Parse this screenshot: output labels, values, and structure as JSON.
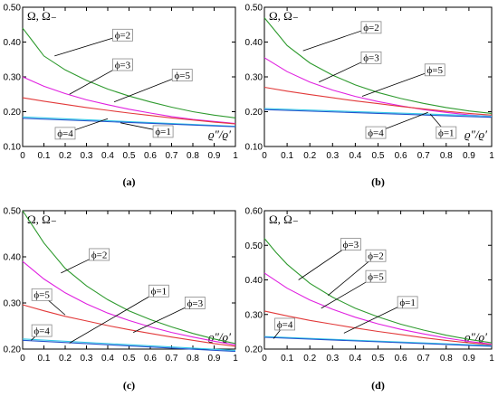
{
  "chart_data": [
    {
      "type": "line",
      "caption": "(a)",
      "ylabel": "Ω, Ω₋",
      "xlabel": "ϱ″/ϱ′",
      "xlim": [
        0,
        1
      ],
      "ylim": [
        0.1,
        0.5
      ],
      "xticks": [
        "0",
        "0.1",
        "0.2",
        "0.3",
        "0.4",
        "0.5",
        "0.6",
        "0.7",
        "0.8",
        "0.9",
        "1"
      ],
      "yticks": [
        "0.10",
        "0.20",
        "0.30",
        "0.40",
        "0.50"
      ],
      "series": [
        {
          "name": "ϕ=2",
          "color": "#2e9a2e",
          "x": [
            0,
            0.05,
            0.1,
            0.2,
            0.3,
            0.4,
            0.5,
            0.6,
            0.7,
            0.8,
            0.9,
            1.0
          ],
          "y": [
            0.44,
            0.4,
            0.36,
            0.32,
            0.29,
            0.265,
            0.245,
            0.228,
            0.213,
            0.2,
            0.19,
            0.182
          ]
        },
        {
          "name": "ϕ=5",
          "color": "#e020e0",
          "x": [
            0,
            0.1,
            0.2,
            0.3,
            0.4,
            0.5,
            0.6,
            0.7,
            0.8,
            0.9,
            1.0
          ],
          "y": [
            0.3,
            0.273,
            0.252,
            0.234,
            0.22,
            0.207,
            0.196,
            0.186,
            0.178,
            0.172,
            0.166
          ]
        },
        {
          "name": "ϕ=3",
          "color": "#e23a3a",
          "x": [
            0,
            0.1,
            0.2,
            0.3,
            0.4,
            0.5,
            0.6,
            0.7,
            0.8,
            0.9,
            1.0
          ],
          "y": [
            0.24,
            0.23,
            0.221,
            0.212,
            0.204,
            0.196,
            0.189,
            0.182,
            0.176,
            0.17,
            0.165
          ]
        },
        {
          "name": "ϕ=4",
          "color": "#33c8e8",
          "x": [
            0,
            1.0
          ],
          "y": [
            0.185,
            0.158
          ]
        },
        {
          "name": "ϕ=1",
          "color": "#2255cc",
          "x": [
            0,
            1.0
          ],
          "y": [
            0.181,
            0.157
          ]
        }
      ],
      "annotations": [
        {
          "text": "ϕ=2",
          "x": 0.47,
          "y": 0.42,
          "tx": 0.15,
          "ty": 0.36
        },
        {
          "text": "ϕ=3",
          "x": 0.47,
          "y": 0.335,
          "tx": 0.22,
          "ty": 0.25
        },
        {
          "text": "ϕ=5",
          "x": 0.75,
          "y": 0.305,
          "tx": 0.43,
          "ty": 0.228
        },
        {
          "text": "ϕ=4",
          "x": 0.2,
          "y": 0.138,
          "tx": 0.4,
          "ty": 0.18
        },
        {
          "text": "ϕ=1",
          "x": 0.66,
          "y": 0.143,
          "tx": 0.46,
          "ty": 0.168
        }
      ]
    },
    {
      "type": "line",
      "caption": "(b)",
      "ylabel": "Ω, Ω₋",
      "xlabel": "ϱ″/ϱ′",
      "xlim": [
        0,
        1
      ],
      "ylim": [
        0.1,
        0.5
      ],
      "xticks": [
        "0",
        "0.1",
        "0.2",
        "0.3",
        "0.4",
        "0.5",
        "0.6",
        "0.7",
        "0.8",
        "0.9",
        "1"
      ],
      "yticks": [
        "0.10",
        "0.20",
        "0.30",
        "0.40",
        "0.50"
      ],
      "series": [
        {
          "name": "ϕ=2",
          "color": "#2e9a2e",
          "x": [
            0,
            0.05,
            0.1,
            0.2,
            0.3,
            0.4,
            0.5,
            0.6,
            0.7,
            0.8,
            0.9,
            1.0
          ],
          "y": [
            0.47,
            0.43,
            0.39,
            0.34,
            0.305,
            0.277,
            0.255,
            0.238,
            0.224,
            0.212,
            0.202,
            0.195
          ]
        },
        {
          "name": "ϕ=5",
          "color": "#e020e0",
          "x": [
            0,
            0.1,
            0.2,
            0.3,
            0.4,
            0.5,
            0.6,
            0.7,
            0.8,
            0.9,
            1.0
          ],
          "y": [
            0.355,
            0.315,
            0.285,
            0.262,
            0.244,
            0.229,
            0.217,
            0.206,
            0.198,
            0.191,
            0.186
          ]
        },
        {
          "name": "ϕ=3",
          "color": "#e23a3a",
          "x": [
            0,
            0.1,
            0.2,
            0.3,
            0.4,
            0.5,
            0.6,
            0.7,
            0.8,
            0.9,
            1.0
          ],
          "y": [
            0.27,
            0.259,
            0.249,
            0.24,
            0.231,
            0.223,
            0.215,
            0.208,
            0.201,
            0.195,
            0.19
          ]
        },
        {
          "name": "ϕ=4",
          "color": "#33c8e8",
          "x": [
            0,
            1.0
          ],
          "y": [
            0.209,
            0.187
          ]
        },
        {
          "name": "ϕ=1",
          "color": "#2255cc",
          "x": [
            0,
            1.0
          ],
          "y": [
            0.206,
            0.184
          ]
        }
      ],
      "annotations": [
        {
          "text": "ϕ=2",
          "x": 0.47,
          "y": 0.442,
          "tx": 0.17,
          "ty": 0.375
        },
        {
          "text": "ϕ=3",
          "x": 0.47,
          "y": 0.355,
          "tx": 0.24,
          "ty": 0.285
        },
        {
          "text": "ϕ=5",
          "x": 0.75,
          "y": 0.32,
          "tx": 0.43,
          "ty": 0.244
        },
        {
          "text": "ϕ=4",
          "x": 0.49,
          "y": 0.14,
          "tx": 0.72,
          "ty": 0.198
        },
        {
          "text": "ϕ=1",
          "x": 0.8,
          "y": 0.14,
          "tx": 0.73,
          "ty": 0.193
        }
      ]
    },
    {
      "type": "line",
      "caption": "(c)",
      "ylabel": "Ω, Ω₋",
      "xlabel": "ϱ″/ϱ′",
      "xlim": [
        0,
        1
      ],
      "ylim": [
        0.2,
        0.5
      ],
      "xticks": [
        "0",
        "0.1",
        "0.2",
        "0.3",
        "0.4",
        "0.5",
        "0.6",
        "0.7",
        "0.8",
        "0.9",
        "1"
      ],
      "yticks": [
        "0.20",
        "0.30",
        "0.40",
        "0.50"
      ],
      "series": [
        {
          "name": "ϕ=2",
          "color": "#2e9a2e",
          "x": [
            0,
            0.05,
            0.1,
            0.2,
            0.3,
            0.4,
            0.5,
            0.6,
            0.7,
            0.8,
            0.9,
            1.0
          ],
          "y": [
            0.5,
            0.465,
            0.43,
            0.375,
            0.337,
            0.307,
            0.283,
            0.264,
            0.248,
            0.234,
            0.222,
            0.212
          ]
        },
        {
          "name": "ϕ=5",
          "color": "#e020e0",
          "x": [
            0,
            0.1,
            0.2,
            0.3,
            0.4,
            0.5,
            0.6,
            0.7,
            0.8,
            0.9,
            1.0
          ],
          "y": [
            0.39,
            0.352,
            0.322,
            0.298,
            0.278,
            0.262,
            0.248,
            0.236,
            0.226,
            0.217,
            0.209
          ]
        },
        {
          "name": "ϕ=3",
          "color": "#e23a3a",
          "x": [
            0,
            0.1,
            0.2,
            0.3,
            0.4,
            0.5,
            0.6,
            0.7,
            0.8,
            0.9,
            1.0
          ],
          "y": [
            0.296,
            0.283,
            0.271,
            0.261,
            0.251,
            0.242,
            0.234,
            0.226,
            0.219,
            0.212,
            0.206
          ]
        },
        {
          "name": "ϕ=4",
          "color": "#33c8e8",
          "x": [
            0,
            1.0
          ],
          "y": [
            0.222,
            0.197
          ]
        },
        {
          "name": "ϕ=1",
          "color": "#2255cc",
          "x": [
            0,
            1.0
          ],
          "y": [
            0.219,
            0.195
          ]
        }
      ],
      "annotations": [
        {
          "text": "ϕ=2",
          "x": 0.36,
          "y": 0.405,
          "tx": 0.18,
          "ty": 0.365
        },
        {
          "text": "ϕ=5",
          "x": 0.09,
          "y": 0.318,
          "tx": 0.2,
          "ty": 0.274
        },
        {
          "text": "ϕ=1",
          "x": 0.64,
          "y": 0.326,
          "tx": 0.22,
          "ty": 0.213
        },
        {
          "text": "ϕ=3",
          "x": 0.81,
          "y": 0.3,
          "tx": 0.52,
          "ty": 0.236
        },
        {
          "text": "ϕ=4",
          "x": 0.09,
          "y": 0.24,
          "tx": 0.04,
          "ty": 0.219
        }
      ]
    },
    {
      "type": "line",
      "caption": "(d)",
      "ylabel": "Ω, Ω₋",
      "xlabel": "ϱ″/ϱ′",
      "xlim": [
        0,
        1
      ],
      "ylim": [
        0.2,
        0.6
      ],
      "xticks": [
        "0",
        "0.1",
        "0.2",
        "0.3",
        "0.4",
        "0.5",
        "0.6",
        "0.7",
        "0.8",
        "0.9",
        "1"
      ],
      "yticks": [
        "0.20",
        "0.30",
        "0.40",
        "0.50",
        "0.60"
      ],
      "series": [
        {
          "name": "ϕ=2",
          "color": "#2e9a2e",
          "x": [
            0,
            0.05,
            0.1,
            0.2,
            0.3,
            0.4,
            0.5,
            0.6,
            0.7,
            0.8,
            0.9,
            1.0
          ],
          "y": [
            0.52,
            0.48,
            0.445,
            0.39,
            0.35,
            0.318,
            0.293,
            0.272,
            0.255,
            0.24,
            0.228,
            0.218
          ]
        },
        {
          "name": "ϕ=5",
          "color": "#e020e0",
          "x": [
            0,
            0.1,
            0.2,
            0.3,
            0.4,
            0.5,
            0.6,
            0.7,
            0.8,
            0.9,
            1.0
          ],
          "y": [
            0.42,
            0.376,
            0.342,
            0.315,
            0.292,
            0.273,
            0.257,
            0.244,
            0.232,
            0.222,
            0.214
          ]
        },
        {
          "name": "ϕ=3",
          "color": "#e23a3a",
          "x": [
            0,
            0.1,
            0.2,
            0.3,
            0.4,
            0.5,
            0.6,
            0.7,
            0.8,
            0.9,
            1.0
          ],
          "y": [
            0.31,
            0.296,
            0.283,
            0.272,
            0.261,
            0.251,
            0.242,
            0.233,
            0.225,
            0.218,
            0.212
          ]
        },
        {
          "name": "ϕ=4",
          "color": "#33c8e8",
          "x": [
            0,
            1.0
          ],
          "y": [
            0.236,
            0.21
          ]
        },
        {
          "name": "ϕ=1",
          "color": "#2255cc",
          "x": [
            0,
            1.0
          ],
          "y": [
            0.234,
            0.208
          ]
        }
      ],
      "annotations": [
        {
          "text": "ϕ=3",
          "x": 0.38,
          "y": 0.503,
          "tx": 0.15,
          "ty": 0.4
        },
        {
          "text": "ϕ=2",
          "x": 0.49,
          "y": 0.47,
          "tx": 0.28,
          "ty": 0.355
        },
        {
          "text": "ϕ=5",
          "x": 0.49,
          "y": 0.41,
          "tx": 0.25,
          "ty": 0.318
        },
        {
          "text": "ϕ=1",
          "x": 0.63,
          "y": 0.335,
          "tx": 0.35,
          "ty": 0.246
        },
        {
          "text": "ϕ=4",
          "x": 0.09,
          "y": 0.272,
          "tx": 0.04,
          "ty": 0.23
        }
      ]
    }
  ]
}
